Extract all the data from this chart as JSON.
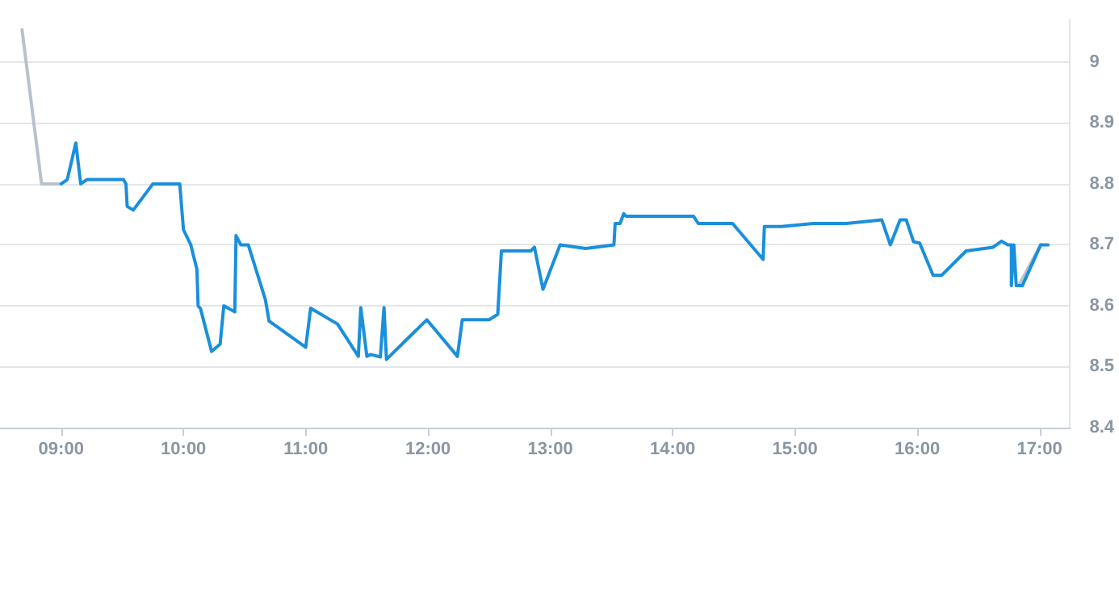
{
  "chart_data": {
    "type": "line",
    "xlim": [
      8.5,
      17.25
    ],
    "ylim": [
      8.4,
      9.07
    ],
    "xticks": [
      {
        "value": 9,
        "label": "09:00"
      },
      {
        "value": 10,
        "label": "10:00"
      },
      {
        "value": 11,
        "label": "11:00"
      },
      {
        "value": 12,
        "label": "12:00"
      },
      {
        "value": 13,
        "label": "13:00"
      },
      {
        "value": 14,
        "label": "14:00"
      },
      {
        "value": 15,
        "label": "15:00"
      },
      {
        "value": 16,
        "label": "16:00"
      },
      {
        "value": 17,
        "label": "17:00"
      }
    ],
    "yticks": [
      8.4,
      8.5,
      8.6,
      8.7,
      8.8,
      8.9,
      9
    ],
    "grid": "y",
    "marker": "none",
    "line_style": "solid",
    "series": [
      {
        "color": "#b8c2cc",
        "x": [
          8.68,
          8.84,
          9.0
        ],
        "values": [
          9.053,
          8.8,
          8.8
        ]
      },
      {
        "color": "#b8c2cc",
        "x": [
          16.83,
          17.01
        ],
        "values": [
          8.633,
          8.7
        ]
      },
      {
        "color": "#1a8fdc",
        "x": [
          9.0,
          9.05,
          9.12,
          9.16,
          9.21,
          9.51,
          9.53,
          9.54,
          9.59,
          9.75,
          9.97,
          10.0,
          10.06,
          10.11,
          10.12,
          10.14,
          10.23,
          10.3,
          10.33,
          10.42,
          10.43,
          10.47,
          10.53,
          10.67,
          10.7,
          11.0,
          11.04,
          11.26,
          11.43,
          11.45,
          11.5,
          11.53,
          11.61,
          11.64,
          11.66,
          11.99,
          12.24,
          12.28,
          12.5,
          12.57,
          12.6,
          12.84,
          12.87,
          12.94,
          13.08,
          13.29,
          13.52,
          13.53,
          13.57,
          13.6,
          13.62,
          14.17,
          14.21,
          14.49,
          14.74,
          14.75,
          14.89,
          15.15,
          15.42,
          15.71,
          15.78,
          15.86,
          15.91,
          15.97,
          16.02,
          16.13,
          16.2,
          16.4,
          16.62,
          16.69,
          16.74,
          16.77,
          16.77,
          16.79,
          16.81,
          16.86,
          17.01,
          17.07
        ],
        "values": [
          8.8,
          8.807,
          8.867,
          8.8,
          8.807,
          8.807,
          8.8,
          8.763,
          8.757,
          8.8,
          8.8,
          8.725,
          8.7,
          8.66,
          8.6,
          8.595,
          8.525,
          8.537,
          8.6,
          8.59,
          8.715,
          8.7,
          8.7,
          8.61,
          8.575,
          8.532,
          8.596,
          8.57,
          8.517,
          8.597,
          8.517,
          8.52,
          8.516,
          8.597,
          8.512,
          8.577,
          8.517,
          8.577,
          8.577,
          8.586,
          8.69,
          8.69,
          8.696,
          8.627,
          8.7,
          8.694,
          8.7,
          8.735,
          8.735,
          8.751,
          8.747,
          8.747,
          8.735,
          8.735,
          8.676,
          8.73,
          8.73,
          8.735,
          8.735,
          8.741,
          8.7,
          8.741,
          8.741,
          8.705,
          8.703,
          8.65,
          8.65,
          8.69,
          8.696,
          8.706,
          8.7,
          8.7,
          8.633,
          8.7,
          8.633,
          8.633,
          8.7,
          8.7
        ]
      }
    ]
  }
}
